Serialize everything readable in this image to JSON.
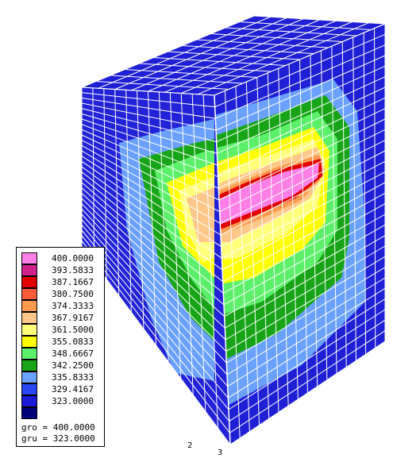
{
  "legend": {
    "entries": [
      {
        "value": "400.0000",
        "color": "#ff7fe6"
      },
      {
        "value": "393.5833",
        "color": "#d0208a"
      },
      {
        "value": "387.1667",
        "color": "#e00000"
      },
      {
        "value": "380.7500",
        "color": "#ff5a3a"
      },
      {
        "value": "374.3333",
        "color": "#ff9a4e"
      },
      {
        "value": "367.9167",
        "color": "#ffc78a"
      },
      {
        "value": "361.5000",
        "color": "#ffff7a"
      },
      {
        "value": "355.0833",
        "color": "#ffff00"
      },
      {
        "value": "348.6667",
        "color": "#5cf06a"
      },
      {
        "value": "342.2500",
        "color": "#17a517"
      },
      {
        "value": "335.8333",
        "color": "#6aa0ff"
      },
      {
        "value": "329.4167",
        "color": "#2a46f2"
      },
      {
        "value": "323.0000",
        "color": "#1a1ad8"
      },
      {
        "value": "",
        "color": "#00007a"
      }
    ],
    "gro": "gro = 400.0000",
    "gru": "gru = 323.0000"
  },
  "axes": {
    "label_2": "2",
    "label_3": "3"
  },
  "colors": {
    "background": "#ffffff",
    "mesh_line": "#ffffff",
    "outer_blue": "#1f1fd6",
    "outline": "#000000"
  }
}
